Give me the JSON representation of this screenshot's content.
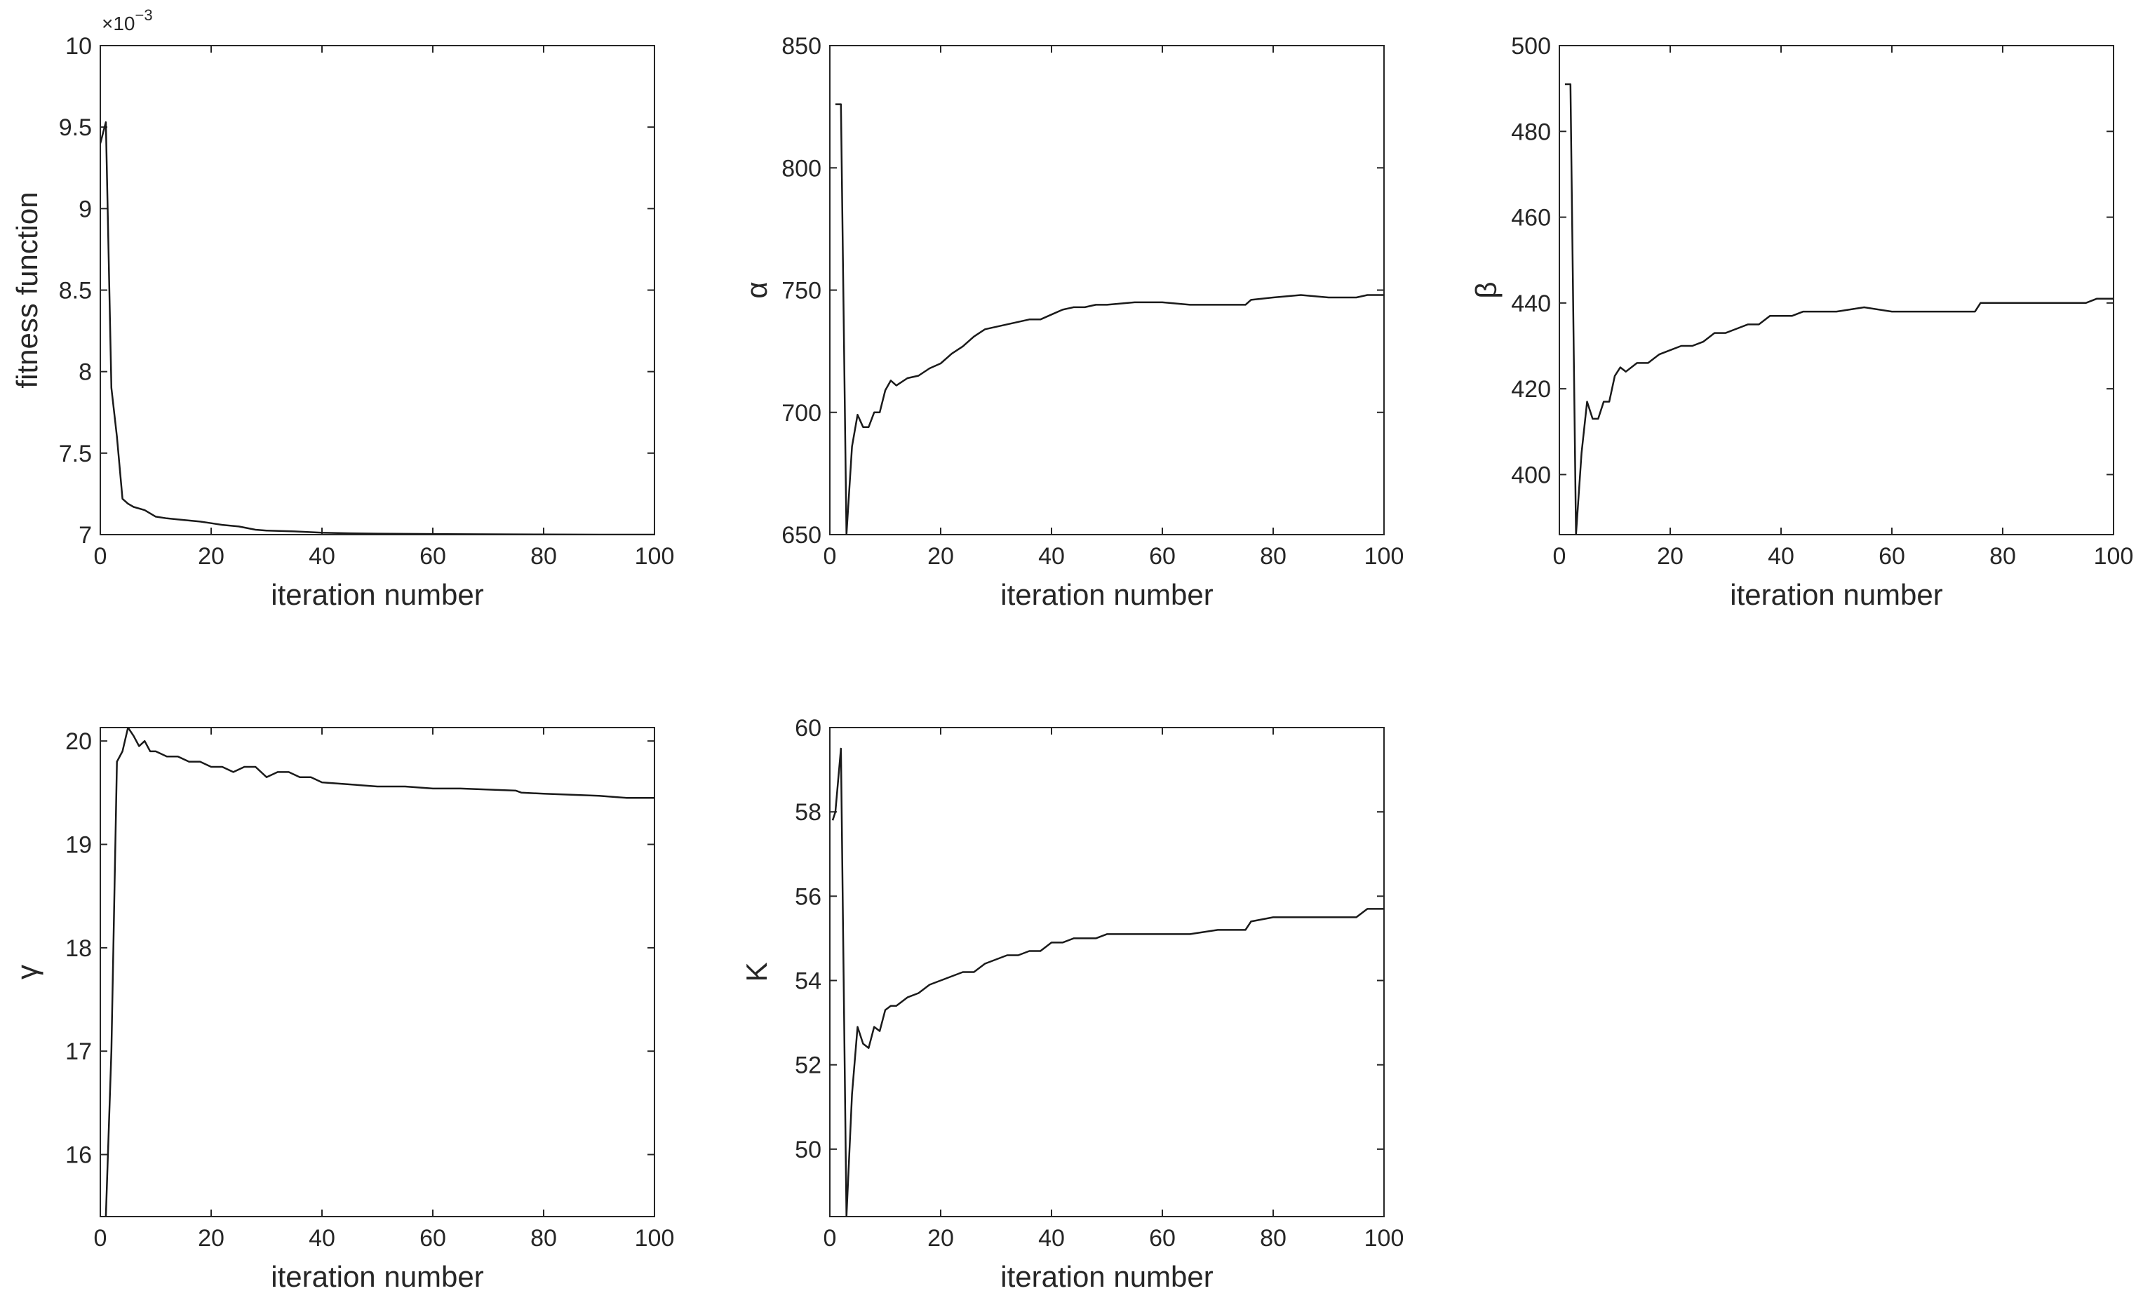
{
  "figure": {
    "background": "#ffffff",
    "axis_color": "#262626",
    "line_color": "#1a1a1a"
  },
  "chart_data": [
    {
      "type": "line",
      "xlabel": "iteration number",
      "ylabel": "fitness function",
      "xlim": [
        0,
        100
      ],
      "ylim": [
        7,
        10
      ],
      "xticks": [
        0,
        20,
        40,
        60,
        80,
        100
      ],
      "yticks": [
        7,
        7.5,
        8,
        8.5,
        9,
        9.5,
        10
      ],
      "ytick_labels": [
        "7",
        "7.5",
        "8",
        "8.5",
        "9",
        "9.5",
        "10"
      ],
      "y_exponent_label": "×10",
      "y_exponent": "−3",
      "grid": false,
      "series": [
        {
          "x": [
            0,
            1,
            2,
            3,
            4,
            5,
            6,
            8,
            10,
            12,
            15,
            18,
            20,
            22,
            25,
            28,
            30,
            35,
            40,
            45,
            50,
            60,
            70,
            80,
            90,
            100
          ],
          "y": [
            9.4,
            9.53,
            7.9,
            7.6,
            7.22,
            7.19,
            7.17,
            7.15,
            7.11,
            7.1,
            7.09,
            7.08,
            7.07,
            7.06,
            7.05,
            7.03,
            7.025,
            7.02,
            7.012,
            7.008,
            7.006,
            7.004,
            7.002,
            7.001,
            7.0,
            7.0
          ]
        }
      ]
    },
    {
      "type": "line",
      "xlabel": "iteration number",
      "ylabel": "α",
      "xlim": [
        0,
        100
      ],
      "ylim": [
        650,
        850
      ],
      "xticks": [
        0,
        20,
        40,
        60,
        80,
        100
      ],
      "yticks": [
        650,
        700,
        750,
        800,
        850
      ],
      "ytick_labels": [
        "650",
        "700",
        "750",
        "800",
        "850"
      ],
      "grid": false,
      "series": [
        {
          "x": [
            1,
            2,
            3,
            4,
            5,
            6,
            7,
            8,
            9,
            10,
            11,
            12,
            14,
            16,
            18,
            20,
            22,
            24,
            26,
            28,
            30,
            32,
            34,
            36,
            38,
            40,
            42,
            44,
            46,
            48,
            50,
            55,
            60,
            65,
            70,
            75,
            76,
            80,
            85,
            90,
            95,
            97,
            100
          ],
          "y": [
            826,
            826,
            650,
            686,
            699,
            694,
            694,
            700,
            700,
            709,
            713,
            711,
            714,
            715,
            718,
            720,
            724,
            727,
            731,
            734,
            735,
            736,
            737,
            738,
            738,
            740,
            742,
            743,
            743,
            744,
            744,
            745,
            745,
            744,
            744,
            744,
            746,
            747,
            748,
            747,
            747,
            748,
            748
          ]
        }
      ]
    },
    {
      "type": "line",
      "xlabel": "iteration number",
      "ylabel": "β",
      "xlim": [
        0,
        100
      ],
      "ylim": [
        386,
        500
      ],
      "xticks": [
        0,
        20,
        40,
        60,
        80,
        100
      ],
      "yticks": [
        400,
        420,
        440,
        460,
        480,
        500
      ],
      "ytick_labels": [
        "400",
        "420",
        "440",
        "460",
        "480",
        "500"
      ],
      "grid": false,
      "series": [
        {
          "x": [
            1,
            2,
            3,
            4,
            5,
            6,
            7,
            8,
            9,
            10,
            11,
            12,
            14,
            16,
            18,
            20,
            22,
            24,
            26,
            28,
            30,
            32,
            34,
            36,
            38,
            40,
            42,
            44,
            46,
            48,
            50,
            55,
            60,
            65,
            70,
            75,
            76,
            80,
            85,
            90,
            95,
            97,
            100
          ],
          "y": [
            491,
            491,
            386,
            405,
            417,
            413,
            413,
            417,
            417,
            423,
            425,
            424,
            426,
            426,
            428,
            429,
            430,
            430,
            431,
            433,
            433,
            434,
            435,
            435,
            437,
            437,
            437,
            438,
            438,
            438,
            438,
            439,
            438,
            438,
            438,
            438,
            440,
            440,
            440,
            440,
            440,
            441,
            441
          ]
        }
      ]
    },
    {
      "type": "line",
      "xlabel": "iteration number",
      "ylabel": "γ",
      "xlim": [
        0,
        100
      ],
      "ylim": [
        15.4,
        20.13
      ],
      "xticks": [
        0,
        20,
        40,
        60,
        80,
        100
      ],
      "yticks": [
        16,
        17,
        18,
        19,
        20
      ],
      "ytick_labels": [
        "16",
        "17",
        "18",
        "19",
        "20"
      ],
      "grid": false,
      "series": [
        {
          "x": [
            1,
            2,
            3,
            4,
            5,
            6,
            7,
            8,
            9,
            10,
            12,
            14,
            16,
            18,
            20,
            22,
            24,
            26,
            28,
            30,
            32,
            34,
            36,
            38,
            40,
            45,
            50,
            55,
            60,
            65,
            70,
            75,
            76,
            80,
            85,
            90,
            95,
            97,
            100
          ],
          "y": [
            15.4,
            17.0,
            19.8,
            19.9,
            20.13,
            20.05,
            19.95,
            20.0,
            19.9,
            19.9,
            19.85,
            19.85,
            19.8,
            19.8,
            19.75,
            19.75,
            19.7,
            19.75,
            19.75,
            19.65,
            19.7,
            19.7,
            19.65,
            19.65,
            19.6,
            19.58,
            19.56,
            19.56,
            19.54,
            19.54,
            19.53,
            19.52,
            19.5,
            19.49,
            19.48,
            19.47,
            19.45,
            19.45,
            19.45
          ]
        }
      ]
    },
    {
      "type": "line",
      "xlabel": "iteration number",
      "ylabel": "K",
      "xlim": [
        0,
        100
      ],
      "ylim": [
        48.4,
        60
      ],
      "xticks": [
        0,
        20,
        40,
        60,
        80,
        100
      ],
      "yticks": [
        50,
        52,
        54,
        56,
        58,
        60
      ],
      "ytick_labels": [
        "50",
        "52",
        "54",
        "56",
        "58",
        "60"
      ],
      "grid": false,
      "series": [
        {
          "x": [
            0.5,
            1,
            2,
            3,
            4,
            5,
            6,
            7,
            8,
            9,
            10,
            11,
            12,
            14,
            16,
            18,
            20,
            22,
            24,
            26,
            28,
            30,
            32,
            34,
            36,
            38,
            40,
            42,
            44,
            46,
            48,
            50,
            55,
            60,
            65,
            70,
            75,
            76,
            80,
            85,
            90,
            95,
            97,
            100
          ],
          "y": [
            57.8,
            58.0,
            59.5,
            48.4,
            51.3,
            52.9,
            52.5,
            52.4,
            52.9,
            52.8,
            53.3,
            53.4,
            53.4,
            53.6,
            53.7,
            53.9,
            54.0,
            54.1,
            54.2,
            54.2,
            54.4,
            54.5,
            54.6,
            54.6,
            54.7,
            54.7,
            54.9,
            54.9,
            55.0,
            55.0,
            55.0,
            55.1,
            55.1,
            55.1,
            55.1,
            55.2,
            55.2,
            55.4,
            55.5,
            55.5,
            55.5,
            55.5,
            55.7,
            55.7
          ]
        }
      ]
    }
  ]
}
